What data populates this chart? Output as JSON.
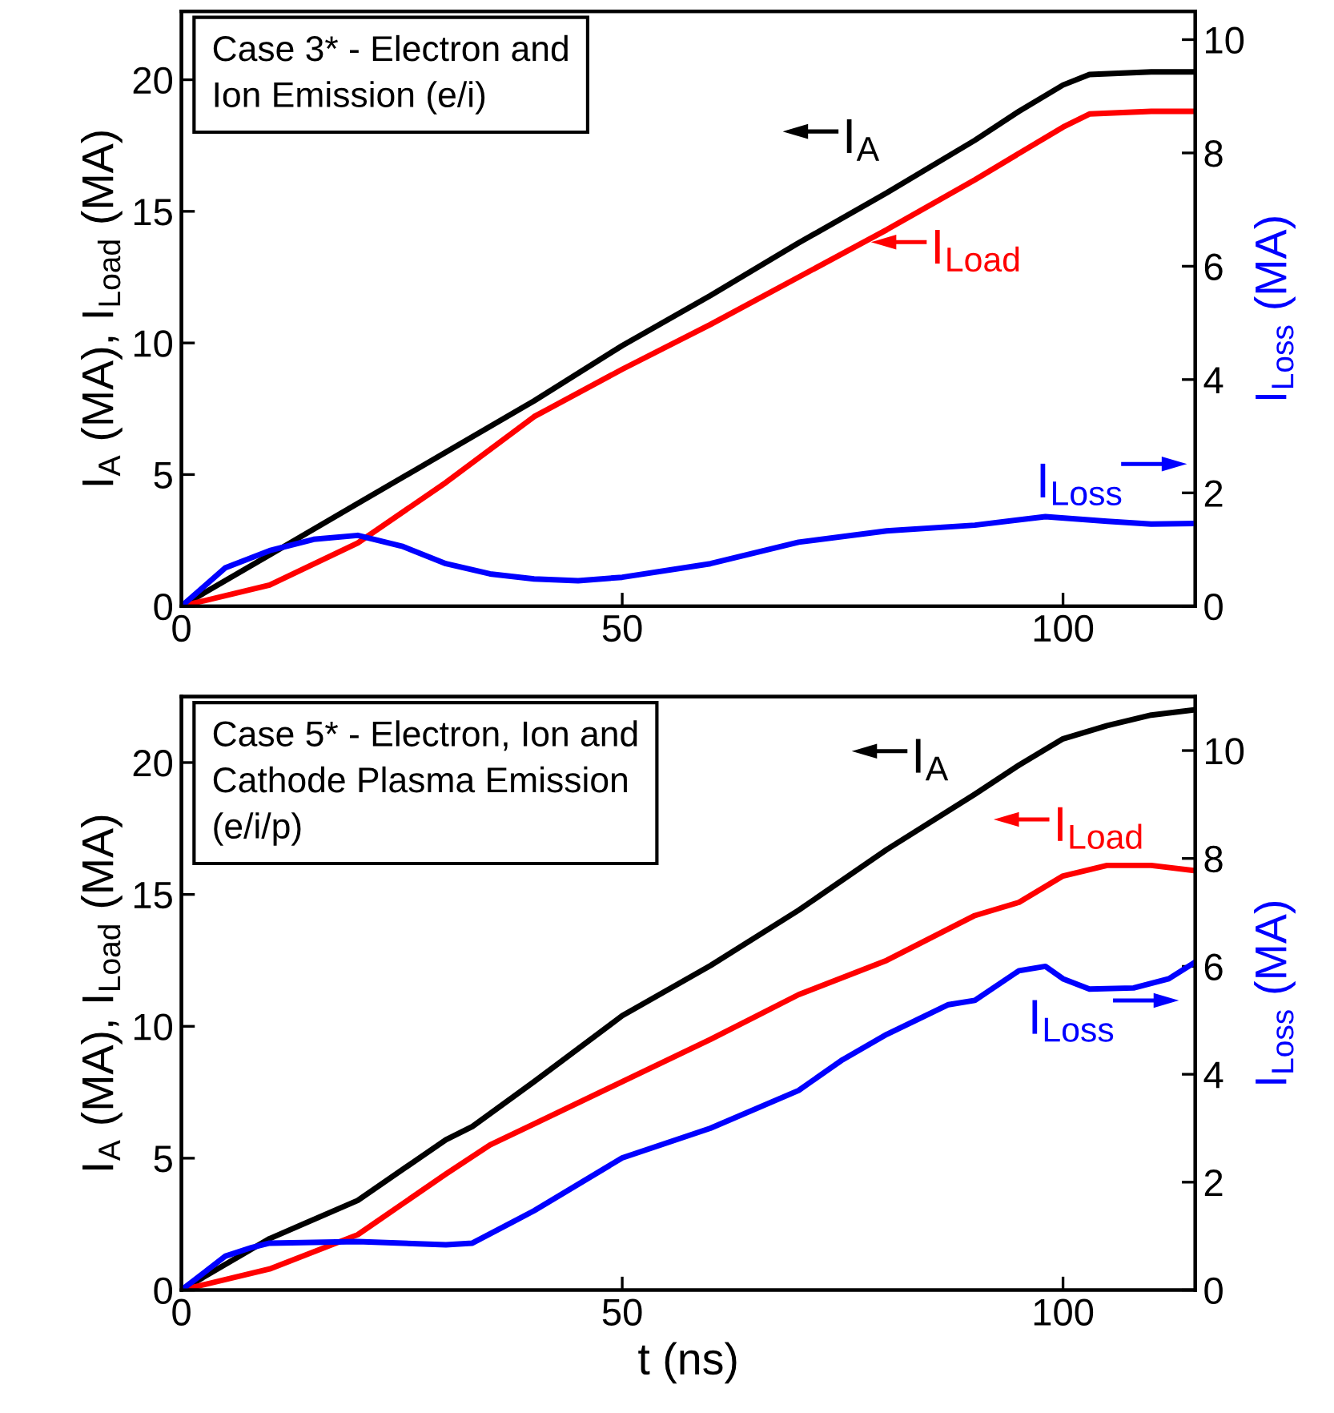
{
  "chart_data": [
    {
      "type": "line",
      "legend": "right",
      "ylabel": "I$_{A}$ (MA), I$_{Load}$ (MA)",
      "y2label": "I$_{Loss}$ (MA)",
      "xlim": [
        0,
        115
      ],
      "xticks": [
        0,
        50,
        100
      ],
      "ylim": [
        0,
        22.6
      ],
      "yticks": [
        0,
        5,
        10,
        15,
        20
      ],
      "y2lim": [
        0,
        10.5
      ],
      "y2ticks": [
        0,
        2,
        4,
        6,
        8,
        10
      ],
      "annotations": [
        "Case 3* - Electron and\nIon Emission (e/i)"
      ],
      "series": [
        {
          "name": "I$_{A}$",
          "color": "#000000",
          "x": [
            0,
            10,
            20,
            30,
            40,
            50,
            60,
            70,
            80,
            90,
            95,
            100,
            103,
            110,
            115
          ],
          "values": [
            0,
            1.95,
            3.9,
            5.85,
            7.8,
            9.9,
            11.8,
            13.8,
            15.7,
            17.7,
            18.8,
            19.8,
            20.2,
            20.3,
            20.3
          ]
        },
        {
          "name": "I$_{Load}$",
          "color": "#ff0000",
          "x": [
            0,
            10,
            20,
            30,
            40,
            50,
            60,
            70,
            80,
            90,
            100,
            103,
            110,
            115
          ],
          "values": [
            0,
            0.8,
            2.4,
            4.7,
            7.2,
            9.0,
            10.7,
            12.5,
            14.3,
            16.2,
            18.2,
            18.7,
            18.8,
            18.8
          ]
        },
        {
          "name": "I$_{Loss}$",
          "color": "#0000ff",
          "axis": "y2",
          "x": [
            0,
            5,
            10,
            15,
            20,
            25,
            30,
            35,
            40,
            45,
            50,
            60,
            70,
            80,
            90,
            98,
            105,
            110,
            115
          ],
          "values": [
            0,
            0.68,
            0.98,
            1.18,
            1.25,
            1.06,
            0.75,
            0.57,
            0.48,
            0.45,
            0.51,
            0.75,
            1.13,
            1.33,
            1.43,
            1.58,
            1.5,
            1.45,
            1.46
          ]
        }
      ]
    },
    {
      "type": "line",
      "legend": "top right",
      "xlabel": "t (ns)",
      "ylabel": "I$_{A}$ (MA), I$_{Load}$ (MA)",
      "y2label": "I$_{Loss}$ (MA)",
      "xlim": [
        0,
        115
      ],
      "xticks": [
        0,
        50,
        100
      ],
      "ylim": [
        0,
        22.5
      ],
      "yticks": [
        0,
        5,
        10,
        15,
        20
      ],
      "y2lim": [
        0,
        11.0
      ],
      "y2ticks": [
        0,
        2,
        4,
        6,
        8,
        10
      ],
      "annotations": [
        "Case 5* - Electron, Ion and\nCathode Plasma Emission\n(e/i/p)"
      ],
      "series": [
        {
          "name": "I$_{A}$",
          "color": "#000000",
          "x": [
            0,
            10,
            20,
            30,
            33,
            40,
            50,
            60,
            70,
            80,
            90,
            95,
            100,
            105,
            110,
            115
          ],
          "values": [
            0,
            1.95,
            3.4,
            5.7,
            6.2,
            7.9,
            10.4,
            12.3,
            14.4,
            16.7,
            18.8,
            19.9,
            20.9,
            21.4,
            21.8,
            22.0
          ]
        },
        {
          "name": "I$_{Load}$",
          "color": "#ff0000",
          "x": [
            0,
            10,
            20,
            30,
            35,
            40,
            50,
            60,
            70,
            80,
            90,
            95,
            100,
            105,
            110,
            115
          ],
          "values": [
            0,
            0.8,
            2.1,
            4.4,
            5.5,
            6.3,
            7.9,
            9.5,
            11.2,
            12.5,
            14.2,
            14.7,
            15.7,
            16.1,
            16.1,
            15.9
          ]
        },
        {
          "name": "I$_{Loss}$",
          "color": "#0000ff",
          "axis": "y2",
          "x": [
            0,
            5,
            8,
            10,
            20,
            30,
            33,
            40,
            50,
            60,
            70,
            75,
            80,
            87,
            90,
            95,
            98,
            100,
            103,
            108,
            112,
            115
          ],
          "values": [
            0,
            0.63,
            0.79,
            0.87,
            0.9,
            0.84,
            0.87,
            1.47,
            2.45,
            3.0,
            3.7,
            4.27,
            4.74,
            5.29,
            5.37,
            5.92,
            6.0,
            5.77,
            5.58,
            5.6,
            5.77,
            6.08
          ]
        }
      ]
    }
  ]
}
